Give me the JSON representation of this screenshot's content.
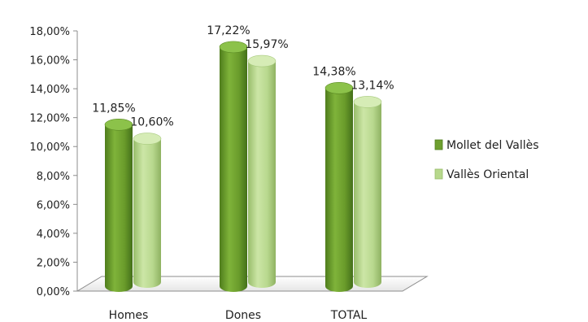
{
  "chart_data": {
    "type": "bar",
    "categories": [
      "Homes",
      "Dones",
      "TOTAL"
    ],
    "series": [
      {
        "name": "Mollet del Vallès",
        "values": [
          11.85,
          17.22,
          14.38
        ],
        "labels": [
          "11,85%",
          "17,22%",
          "14,38%"
        ]
      },
      {
        "name": "Vallès Oriental",
        "values": [
          10.6,
          15.97,
          13.14
        ],
        "labels": [
          "10,60%",
          "15,97%",
          "13,14%"
        ]
      }
    ],
    "ylim": [
      0,
      18
    ],
    "yticks": [
      0,
      2,
      4,
      6,
      8,
      10,
      12,
      14,
      16,
      18
    ],
    "ytick_labels": [
      "0,00%",
      "2,00%",
      "4,00%",
      "6,00%",
      "8,00%",
      "10,00%",
      "12,00%",
      "14,00%",
      "16,00%",
      "18,00%"
    ],
    "title": "",
    "xlabel": "",
    "ylabel": "",
    "grid": false,
    "legend_position": "right",
    "colors": [
      "#6e9f2f",
      "#b7d88c"
    ],
    "style": "3d-cylinder"
  }
}
